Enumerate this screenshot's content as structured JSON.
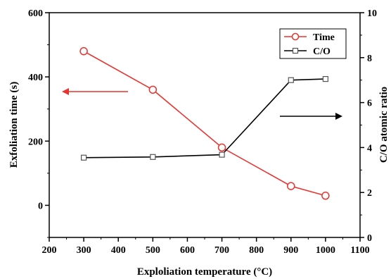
{
  "chart_data": {
    "type": "line",
    "xlabel": "Exploliation temperature (°C)",
    "ylabel_left": "Exfoliation time (s)",
    "ylabel_right": "C/O atomic ratio",
    "xlim": [
      200,
      1100
    ],
    "ylim_left": [
      -100,
      600
    ],
    "ylim_right": [
      0,
      10
    ],
    "x_ticks": [
      200,
      300,
      400,
      500,
      600,
      700,
      800,
      900,
      1000,
      1100
    ],
    "y_left_ticks": [
      0,
      200,
      400,
      600
    ],
    "y_right_ticks": [
      0,
      2,
      4,
      6,
      8,
      10
    ],
    "legend_position": "top-right",
    "series": [
      {
        "name": "Time",
        "axis": "left",
        "marker": "circle",
        "color": "#e8332f",
        "x": [
          300,
          500,
          700,
          900,
          1000
        ],
        "y": [
          480,
          360,
          180,
          60,
          30
        ]
      },
      {
        "name": "C/O",
        "axis": "right",
        "marker": "square",
        "color": "#000000",
        "x": [
          300,
          500,
          700,
          900,
          1000
        ],
        "y": [
          3.55,
          3.58,
          3.68,
          7.0,
          7.05
        ]
      }
    ],
    "annotations": [
      {
        "type": "arrow",
        "direction": "left",
        "color": "#e8332f",
        "meaning": "Time"
      },
      {
        "type": "arrow",
        "direction": "right",
        "color": "#000000",
        "meaning": "C/O"
      }
    ]
  }
}
